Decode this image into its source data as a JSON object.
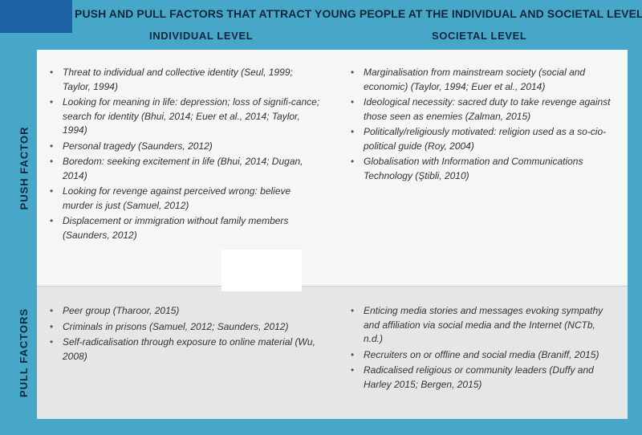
{
  "title": "PUSH AND PULL FACTORS THAT ATTRACT YOUNG PEOPLE AT THE INDIVIDUAL AND SOCIETAL LEVEL",
  "columns": {
    "individual": "INDIVIDUAL LEVEL",
    "societal": "SOCIETAL LEVEL"
  },
  "rows": {
    "push": "PUSH FACTOR",
    "pull": "PULL FACTORS"
  },
  "push": {
    "individual": [
      "Threat to individual and collective identity (Seul, 1999; Taylor, 1994)",
      "Looking for meaning in life: depression; loss of signifi-cance; search for identity (Bhui, 2014; Euer et al., 2014; Taylor, 1994)",
      "Personal tragedy (Saunders, 2012)",
      "Boredom: seeking excitement in life (Bhui, 2014; Dugan, 2014)",
      "Looking for revenge against perceived wrong: believe murder is just (Samuel, 2012)",
      "Displacement or immigration without family members (Saunders, 2012)"
    ],
    "societal": [
      "Marginalisation from mainstream society (social and economic) (Taylor, 1994; Euer et al., 2014)",
      "Ideological necessity: sacred duty to take revenge against those seen as enemies (Zalman, 2015)",
      "Politically/religiously motivated: religion used as a so-cio-political guide (Roy, 2004)",
      "Globalisation with Information and Communications Technology (Ştibli, 2010)"
    ]
  },
  "pull": {
    "individual": [
      "Peer group (Tharoor, 2015)",
      "Criminals in prisons (Samuel, 2012; Saunders, 2012)",
      "Self-radicalisation through exposure to online material (Wu, 2008)"
    ],
    "societal": [
      "Enticing media stories and messages evoking sympathy and affiliation via social media and the Internet (NCTb, n.d.)",
      "Recruiters on or offline and social media (Braniff, 2015)",
      "Radicalised religious or community leaders (Duffy and Harley 2015; Bergen, 2015)"
    ]
  }
}
